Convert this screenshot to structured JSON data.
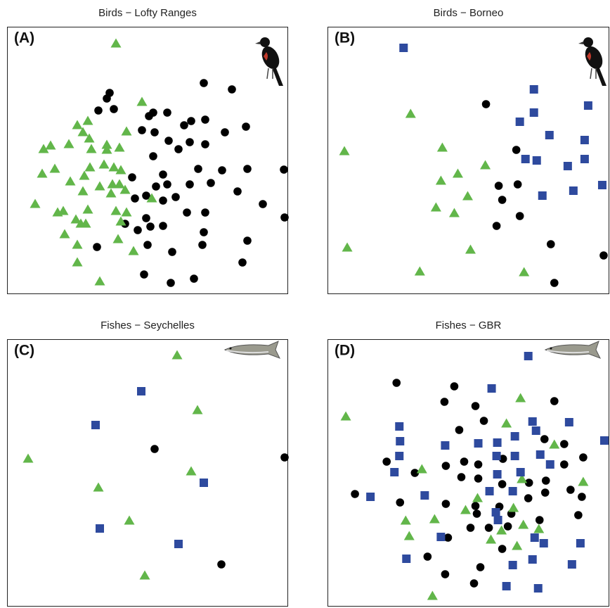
{
  "chart_data": [
    {
      "type": "scatter",
      "title": "Birds − Lofty Ranges",
      "label": "(A)",
      "xlim": [
        0,
        400
      ],
      "ylim": [
        0,
        380
      ],
      "series": [
        {
          "color": "#000000",
          "marker": "circle",
          "x": [
            280,
            320,
            146,
            142,
            130,
            152,
            208,
            228,
            202,
            262,
            252,
            282,
            340,
            310,
            192,
            210,
            230,
            260,
            282,
            244,
            208,
            178,
            222,
            272,
            306,
            342,
            394,
            212,
            228,
            260,
            290,
            328,
            182,
            198,
            240,
            222,
            364,
            256,
            282,
            395,
            168,
            198,
            186,
            204,
            222,
            280,
            128,
            200,
            278,
            342,
            235,
            335,
            195,
            266,
            233
          ],
          "y": [
            300,
            291,
            286,
            278,
            261,
            263,
            258,
            258,
            253,
            246,
            240,
            248,
            238,
            230,
            233,
            230,
            218,
            216,
            213,
            206,
            196,
            166,
            170,
            178,
            176,
            178,
            177,
            153,
            156,
            156,
            158,
            146,
            136,
            140,
            138,
            133,
            128,
            116,
            116,
            109,
            100,
            108,
            91,
            96,
            97,
            88,
            67,
            70,
            70,
            76,
            60,
            45,
            28,
            22,
            16
          ]
        },
        {
          "color": "#62b64a",
          "marker": "triangle",
          "x": [
            155,
            192,
            115,
            100,
            108,
            170,
            117,
            62,
            52,
            88,
            120,
            142,
            160,
            142,
            68,
            50,
            118,
            138,
            152,
            162,
            90,
            110,
            132,
            150,
            160,
            168,
            148,
            108,
            40,
            80,
            72,
            115,
            155,
            170,
            105,
            112,
            98,
            82,
            162,
            100,
            158,
            180,
            100,
            132,
            206
          ],
          "y": [
            356,
            273,
            246,
            240,
            230,
            231,
            221,
            211,
            206,
            213,
            206,
            212,
            208,
            205,
            178,
            171,
            180,
            184,
            180,
            176,
            160,
            168,
            153,
            156,
            156,
            148,
            143,
            146,
            128,
            118,
            116,
            120,
            118,
            116,
            100,
            100,
            106,
            85,
            103,
            70,
            78,
            61,
            45,
            18,
            136
          ]
        }
      ]
    },
    {
      "type": "scatter",
      "title": "Birds − Borneo",
      "label": "(B)",
      "xlim": [
        0,
        400
      ],
      "ylim": [
        0,
        380
      ],
      "series": [
        {
          "color": "#000000",
          "marker": "circle",
          "x": [
            225,
            268,
            243,
            270,
            248,
            273,
            240,
            317,
            392,
            322
          ],
          "y": [
            270,
            205,
            154,
            156,
            134,
            111,
            97,
            71,
            55,
            16
          ]
        },
        {
          "color": "#62b64a",
          "marker": "triangle",
          "x": [
            118,
            24,
            163,
            224,
            185,
            161,
            199,
            154,
            180,
            28,
            203,
            131,
            279
          ],
          "y": [
            256,
            203,
            208,
            183,
            171,
            161,
            139,
            123,
            115,
            66,
            63,
            32,
            31
          ]
        },
        {
          "color": "#2e4a9e",
          "marker": "square",
          "x": [
            108,
            293,
            370,
            293,
            273,
            315,
            365,
            281,
            297,
            341,
            365,
            390,
            349,
            305
          ],
          "y": [
            350,
            291,
            268,
            258,
            245,
            226,
            219,
            192,
            190,
            182,
            192,
            155,
            147,
            140
          ]
        }
      ]
    },
    {
      "type": "scatter",
      "title": "Fishes − Seychelles",
      "label": "(C)",
      "xlim": [
        0,
        400
      ],
      "ylim": [
        0,
        380
      ],
      "series": [
        {
          "color": "#000000",
          "marker": "circle",
          "x": [
            210,
            395,
            305
          ],
          "y": [
            224,
            212,
            60
          ]
        },
        {
          "color": "#62b64a",
          "marker": "triangle",
          "x": [
            242,
            271,
            30,
            262,
            130,
            174,
            196
          ],
          "y": [
            357,
            279,
            210,
            192,
            169,
            122,
            44
          ]
        },
        {
          "color": "#2e4a9e",
          "marker": "square",
          "x": [
            191,
            126,
            280,
            132,
            244
          ],
          "y": [
            306,
            258,
            176,
            111,
            89
          ]
        }
      ]
    },
    {
      "type": "scatter",
      "title": "Fishes − GBR",
      "label": "(D)",
      "xlim": [
        0,
        400
      ],
      "ylim": [
        0,
        380
      ],
      "series": [
        {
          "color": "#000000",
          "marker": "circle",
          "x": [
            98,
            180,
            166,
            210,
            322,
            222,
            187,
            308,
            336,
            84,
            168,
            194,
            214,
            249,
            363,
            124,
            190,
            214,
            248,
            286,
            310,
            336,
            39,
            103,
            168,
            210,
            285,
            309,
            345,
            361,
            244,
            212,
            261,
            301,
            356,
            203,
            229,
            256,
            171,
            248,
            142,
            217,
            167,
            208
          ],
          "y": [
            318,
            313,
            291,
            285,
            292,
            264,
            251,
            238,
            231,
            206,
            200,
            206,
            202,
            210,
            212,
            190,
            184,
            182,
            174,
            176,
            179,
            202,
            160,
            148,
            146,
            143,
            154,
            162,
            166,
            156,
            142,
            132,
            132,
            123,
            130,
            112,
            112,
            114,
            98,
            82,
            71,
            56,
            46,
            33
          ]
        },
        {
          "color": "#62b64a",
          "marker": "triangle",
          "x": [
            26,
            274,
            254,
            322,
            134,
            363,
            276,
            213,
            196,
            264,
            152,
            111,
            278,
            300,
            116,
            247,
            232,
            269,
            149
          ],
          "y": [
            270,
            296,
            260,
            230,
            195,
            177,
            181,
            154,
            137,
            140,
            124,
            122,
            116,
            110,
            100,
            108,
            95,
            86,
            15
          ]
        },
        {
          "color": "#2e4a9e",
          "marker": "square",
          "x": [
            285,
            233,
            102,
            291,
            343,
            296,
            103,
            167,
            214,
            241,
            393,
            266,
            102,
            240,
            266,
            302,
            316,
            95,
            241,
            274,
            230,
            263,
            138,
            61,
            239,
            242,
            161,
            294,
            307,
            359,
            112,
            291,
            263,
            347,
            254,
            299
          ],
          "y": [
            356,
            310,
            256,
            263,
            262,
            250,
            235,
            229,
            232,
            233,
            236,
            242,
            214,
            214,
            214,
            216,
            202,
            191,
            188,
            191,
            164,
            164,
            158,
            156,
            134,
            123,
            99,
            98,
            90,
            90,
            68,
            67,
            59,
            60,
            29,
            26
          ]
        }
      ]
    }
  ]
}
